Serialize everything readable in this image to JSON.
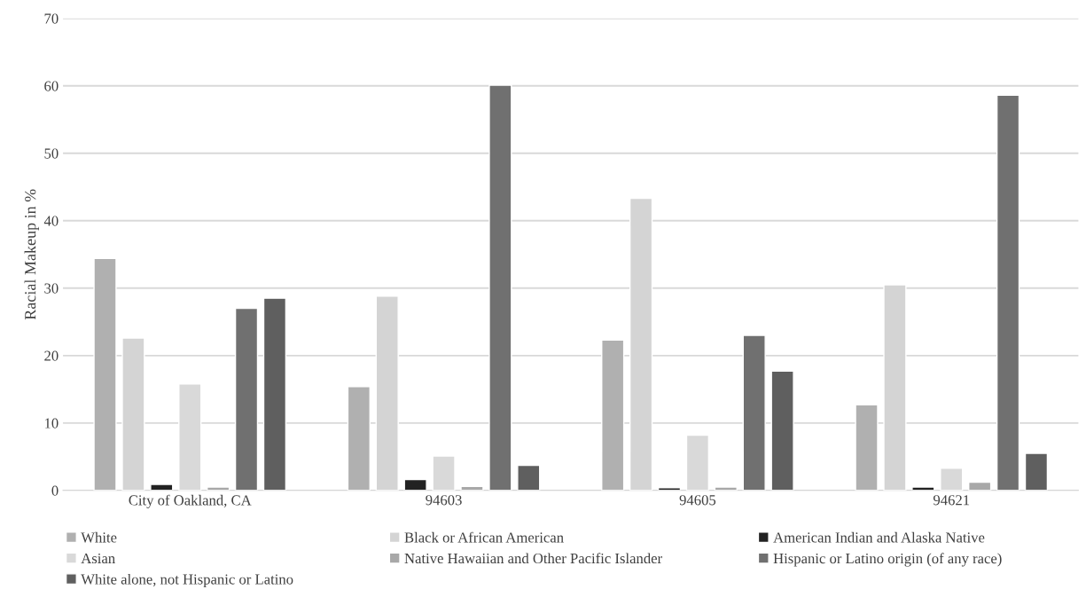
{
  "chart_data": {
    "type": "bar",
    "ylabel": "Racial Makeup in %",
    "categories": [
      "City of Oakland, CA",
      "94603",
      "94605",
      "94621"
    ],
    "series": [
      {
        "name": "White",
        "color": "#b0b0b0",
        "values": [
          34.4,
          15.4,
          22.3,
          12.7
        ]
      },
      {
        "name": "Black or African American",
        "color": "#d4d4d4",
        "values": [
          22.6,
          28.8,
          43.3,
          30.5
        ]
      },
      {
        "name": "American Indian and Alaska Native",
        "color": "#222222",
        "values": [
          0.9,
          1.6,
          0.4,
          0.5
        ]
      },
      {
        "name": "Asian",
        "color": "#d9d9d9",
        "values": [
          15.8,
          5.1,
          8.2,
          3.3
        ]
      },
      {
        "name": "Native Hawaiian and Other Pacific Islander",
        "color": "#a8a8a8",
        "values": [
          0.5,
          0.6,
          0.5,
          1.2
        ]
      },
      {
        "name": "Hispanic or Latino origin (of any race)",
        "color": "#707070",
        "values": [
          27.0,
          60.1,
          23.0,
          58.6
        ]
      },
      {
        "name": "White alone, not Hispanic or Latino",
        "color": "#5f5f5f",
        "values": [
          28.5,
          3.7,
          17.7,
          5.5
        ]
      }
    ],
    "ylim": [
      0,
      70
    ],
    "yticks": [
      0,
      10,
      20,
      30,
      40,
      50,
      60,
      70
    ],
    "grid": "y",
    "legend": "bottom"
  }
}
